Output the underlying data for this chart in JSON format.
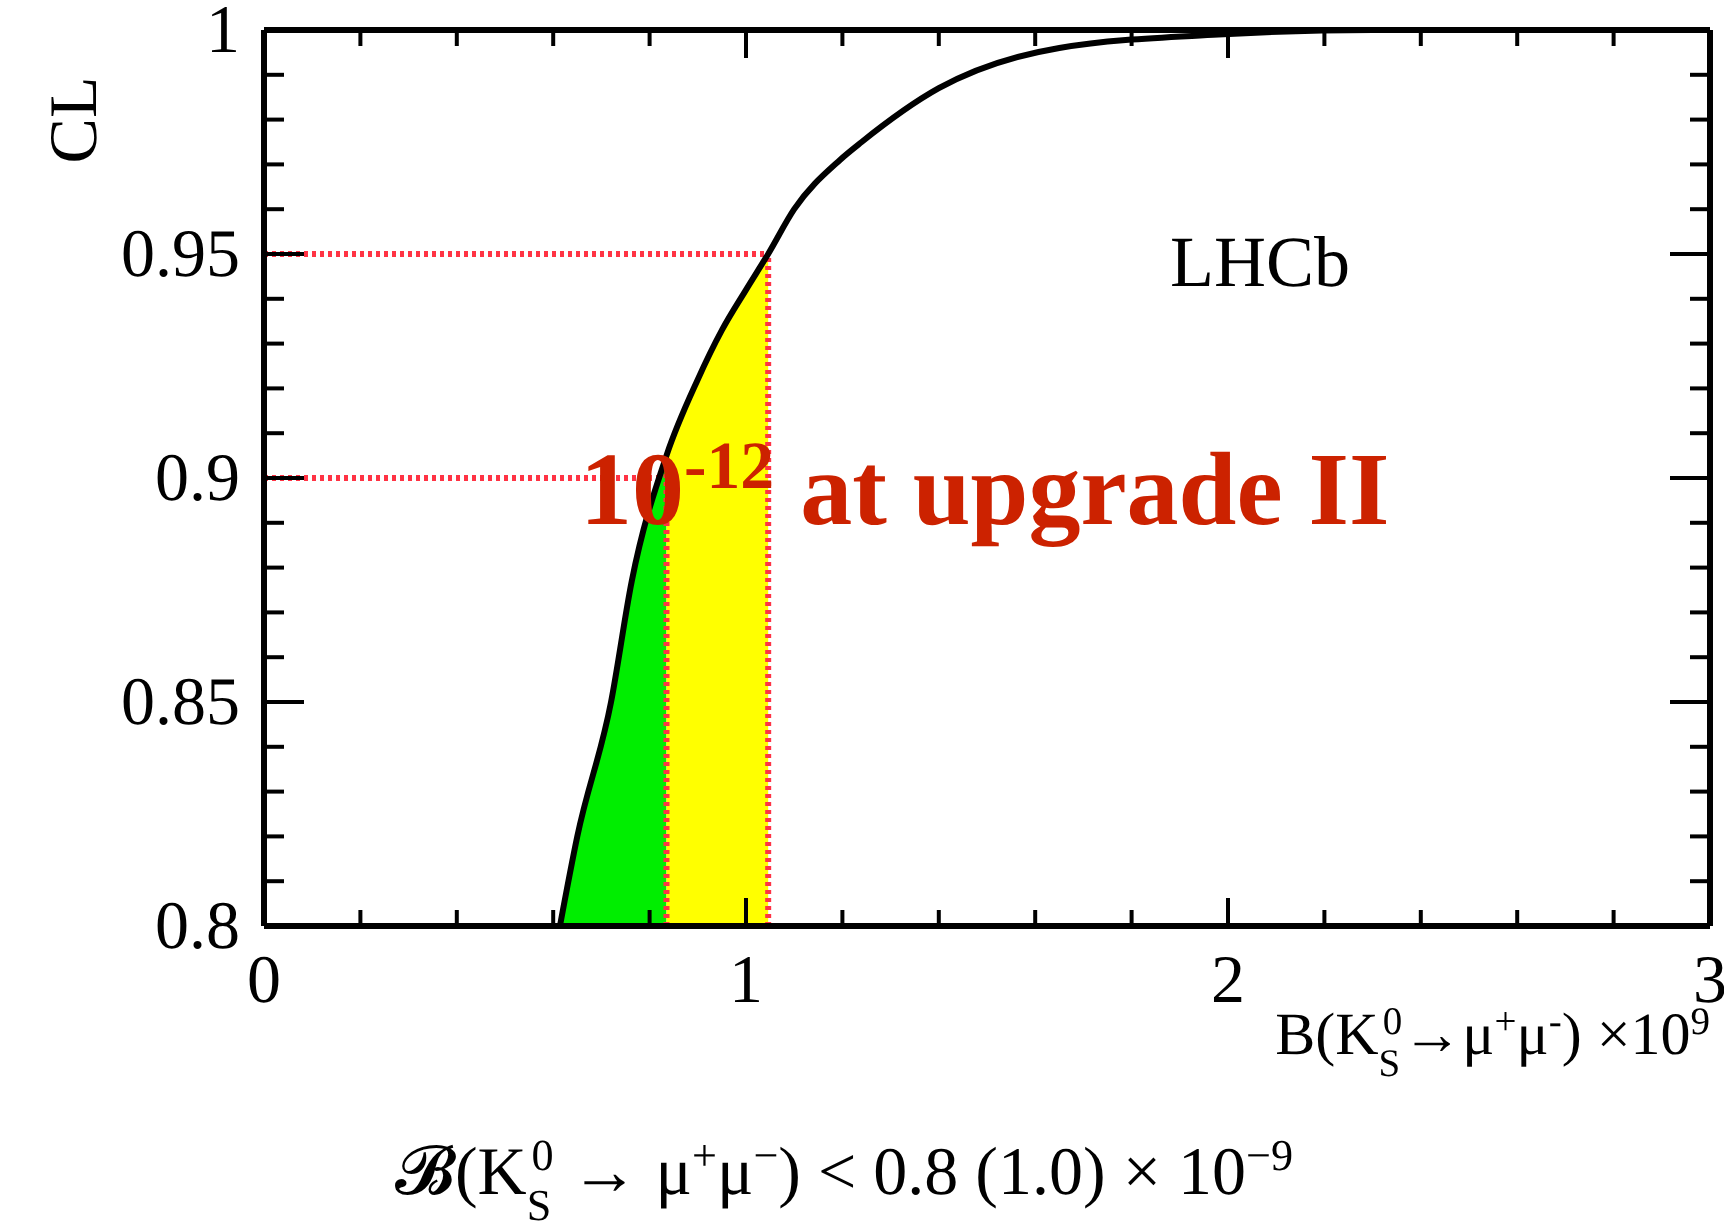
{
  "chart_data": {
    "type": "line",
    "xlabel": "B(K$_{S}$$^{0}$→μ$^{+}$μ$^{-}$) ×10$^{9}$",
    "ylabel": "CL",
    "xlim": [
      0,
      3
    ],
    "ylim": [
      0.8,
      1
    ],
    "xticks": [
      0,
      {
        "value": 0.2,
        "label": null
      },
      {
        "value": 0.4,
        "label": null
      },
      {
        "value": 0.6,
        "label": null
      },
      {
        "value": 0.8,
        "label": null
      },
      1,
      {
        "value": 1.2,
        "label": null
      },
      {
        "value": 1.4,
        "label": null
      },
      {
        "value": 1.6,
        "label": null
      },
      {
        "value": 1.8,
        "label": null
      },
      2,
      {
        "value": 2.2,
        "label": null
      },
      {
        "value": 2.4,
        "label": null
      },
      {
        "value": 2.6,
        "label": null
      },
      {
        "value": 2.8,
        "label": null
      },
      3
    ],
    "yticks": [
      {
        "value": 0.8,
        "label": "0.8"
      },
      {
        "value": 0.81,
        "label": null
      },
      {
        "value": 0.82,
        "label": null
      },
      {
        "value": 0.83,
        "label": null
      },
      {
        "value": 0.84,
        "label": null
      },
      0.85,
      {
        "value": 0.86,
        "label": null
      },
      {
        "value": 0.87,
        "label": null
      },
      {
        "value": 0.88,
        "label": null
      },
      {
        "value": 0.89,
        "label": null
      },
      0.9,
      {
        "value": 0.91,
        "label": null
      },
      {
        "value": 0.92,
        "label": null
      },
      {
        "value": 0.93,
        "label": null
      },
      {
        "value": 0.94,
        "label": null
      },
      0.95,
      {
        "value": 0.96,
        "label": null
      },
      {
        "value": 0.97,
        "label": null
      },
      {
        "value": 0.98,
        "label": null
      },
      {
        "value": 0.99,
        "label": null
      },
      1
    ],
    "grid": false,
    "marker": "none",
    "line_style": "solid",
    "series": [
      {
        "type": "area",
        "color": "#00ee00",
        "x": [
          0.614,
          0.65,
          0.72,
          0.763,
          0.835
        ],
        "values": [
          0.8,
          0.82,
          0.85,
          0.877,
          0.905
        ]
      },
      {
        "type": "area",
        "color": "#ffff00",
        "x": [
          0.835,
          0.9,
          0.95,
          1.0,
          1.046
        ],
        "values": [
          0.905,
          0.922,
          0.933,
          0.942,
          0.95
        ]
      },
      {
        "type": "line",
        "color": "#000000",
        "x": [
          0.614,
          0.65,
          0.72,
          0.763,
          0.835,
          0.9,
          0.95,
          1.0,
          1.046,
          1.1,
          1.195,
          1.24,
          1.4,
          1.65,
          1.98,
          2.3,
          3
        ],
        "values": [
          0.8,
          0.82,
          0.85,
          0.877,
          0.905,
          0.922,
          0.933,
          0.942,
          0.95,
          0.96,
          0.971,
          0.975,
          0.987,
          0.996,
          0.999,
          1,
          1
        ]
      }
    ],
    "ref_lines": [
      {
        "axis": "y",
        "value": 0.9,
        "color": "#ff3344",
        "line_style": "dotted"
      },
      {
        "axis": "y",
        "value": 0.95,
        "color": "#ff3344",
        "line_style": "dotted"
      },
      {
        "axis": "x",
        "value": 0.835,
        "color": "#ff3344",
        "line_style": "dotted"
      },
      {
        "axis": "x",
        "value": 1.046,
        "color": "#ff3344",
        "line_style": "dotted"
      }
    ],
    "annotations": [
      "LHCb",
      "10$^{-12}$ at upgrade II",
      "𝓑(K$_{S}$$^{0}$ → μ$^{+}$μ$^{−}$) < 0.8 (1.0) × 10$^{−9}$"
    ]
  }
}
